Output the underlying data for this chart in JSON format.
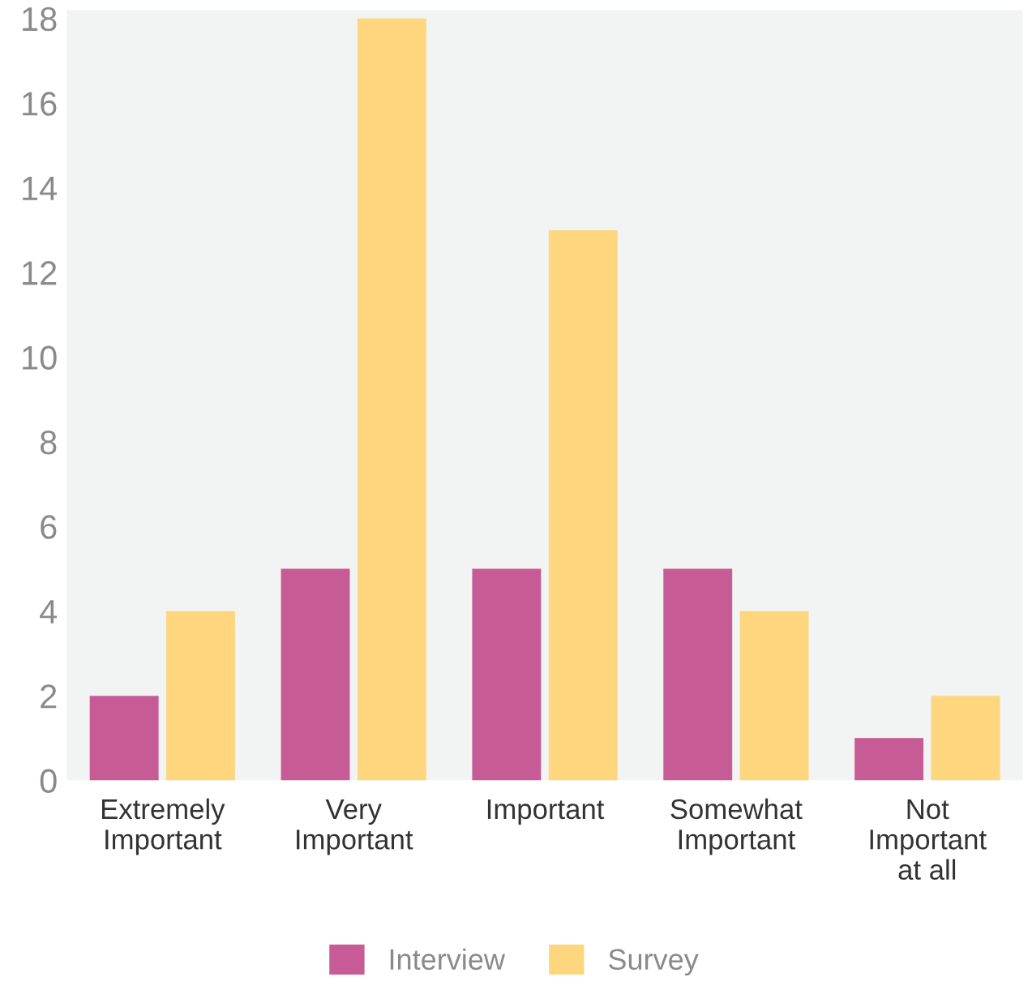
{
  "chart_data": {
    "type": "bar",
    "categories": [
      "Extremely\nImportant",
      "Very\nImportant",
      "Important",
      "Somewhat\nImportant",
      "Not\nImportant\nat all"
    ],
    "series": [
      {
        "name": "Interview",
        "color": "#c75b96",
        "values": [
          2,
          5,
          5,
          5,
          1
        ]
      },
      {
        "name": "Survey",
        "color": "#fed67e",
        "values": [
          4,
          18,
          13,
          4,
          2
        ]
      }
    ],
    "ylim": [
      0,
      18.2
    ],
    "yticks": [
      0,
      2,
      4,
      6,
      8,
      10,
      12,
      14,
      16,
      18
    ],
    "grid": false,
    "legend": "bottom"
  }
}
